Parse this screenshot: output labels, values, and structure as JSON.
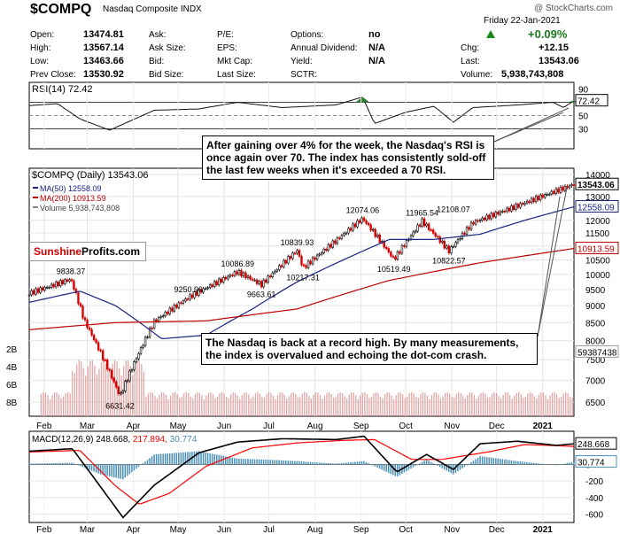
{
  "header": {
    "symbol": "$COMPQ",
    "name": "Nasdaq Composite INDX",
    "source": "@ StockCharts.com",
    "date": "Friday 22-Jan-2021",
    "change_pct": "+0.09%",
    "stats": [
      {
        "label": "Open:",
        "value": "13474.81"
      },
      {
        "label": "High:",
        "value": "13567.14"
      },
      {
        "label": "Low:",
        "value": "13463.66"
      },
      {
        "label": "Prev Close:",
        "value": "13530.92"
      }
    ],
    "col2": [
      "Ask:",
      "Ask Size:",
      "Bid:",
      "Bid Size:"
    ],
    "col3": [
      "P/E:",
      "EPS:",
      "Mkt Cap:",
      "Last Size:"
    ],
    "col4": [
      {
        "label": "Options:",
        "value": "no"
      },
      {
        "label": "Annual Dividend:",
        "value": "N/A"
      },
      {
        "label": "Yield:",
        "value": "N/A"
      },
      {
        "label": "SCTR:",
        "value": ""
      }
    ],
    "col5": [
      {
        "label": "Chg:",
        "value": "+12.15"
      },
      {
        "label": "Last:",
        "value": "13543.06"
      },
      {
        "label": "Volume:",
        "value": "5,938,743,808"
      }
    ]
  },
  "logo": {
    "part1": "Sunshine",
    "part2": "Profits.com"
  },
  "annotations": {
    "rsi_note": "After gaining over 4% for the week, the Nasdaq's RSI is once again over 70. The index has consistently sold-off the last few weeks when it's exceeded a 70 RSI.",
    "price_note": "The Nasdaq is back at a record high. By many measurements, the index is overvalued and echoing the dot-com crash."
  },
  "colors": {
    "ma50": "#1a237e",
    "ma200": "#c00000",
    "up": "#000000",
    "down": "#d40000",
    "volume": "#d98a8a",
    "histogram": "#4a90b8",
    "signal": "#ff0000",
    "rsi_fill": "#2e7d32"
  },
  "chart_data": [
    {
      "type": "line",
      "title": "RSI(14) 72.42",
      "x": [
        "2020-01-22",
        "2020-02-10",
        "2020-02-25",
        "2020-03-16",
        "2020-04-15",
        "2020-05-15",
        "2020-06-10",
        "2020-07-10",
        "2020-08-15",
        "2020-09-02",
        "2020-09-10",
        "2020-10-01",
        "2020-10-20",
        "2020-11-02",
        "2020-11-15",
        "2020-12-15",
        "2021-01-08",
        "2021-01-15",
        "2021-01-22"
      ],
      "values": [
        65,
        68,
        45,
        28,
        58,
        60,
        70,
        62,
        66,
        78,
        38,
        55,
        64,
        40,
        62,
        66,
        70,
        62,
        72.42
      ],
      "ylim": [
        0,
        100
      ],
      "reference_lines": [
        70,
        50,
        30
      ],
      "tick_labels": [
        "90",
        "70",
        "50",
        "30"
      ],
      "current_label": "72.42"
    },
    {
      "type": "line",
      "title": "$COMPQ (Daily) 13543.06",
      "legend": [
        "MA(50) 12558.09",
        "MA(200) 10913.59",
        "Volume 5,938,743,808"
      ],
      "scale": "log",
      "ylim": [
        6200,
        14300
      ],
      "y_ticks": [
        "14000",
        "13000",
        "12000",
        "11500",
        "11000",
        "10500",
        "10000",
        "9500",
        "9000",
        "8500",
        "8000",
        "7500",
        "7000",
        "6500"
      ],
      "series": [
        {
          "name": "$COMPQ",
          "x": [
            "2020-01-22",
            "2020-02-19",
            "2020-02-28",
            "2020-03-23",
            "2020-04-15",
            "2020-05-08",
            "2020-06-10",
            "2020-06-26",
            "2020-07-20",
            "2020-07-24",
            "2020-08-15",
            "2020-09-02",
            "2020-09-23",
            "2020-10-12",
            "2020-10-30",
            "2020-11-15",
            "2020-12-15",
            "2021-01-08",
            "2021-01-22"
          ],
          "values": [
            9380,
            9838.37,
            8560,
            6631.42,
            8530,
            9250.96,
            10086.89,
            9663.61,
            10839.93,
            10217.31,
            11200,
            12074.06,
            10519.49,
            11965.54,
            10822.57,
            11900,
            12600,
            13200,
            13543.06
          ]
        },
        {
          "name": "MA(50)",
          "x": [
            "2020-01-22",
            "2020-02-25",
            "2020-03-20",
            "2020-04-20",
            "2020-05-20",
            "2020-06-20",
            "2020-07-20",
            "2020-08-20",
            "2020-09-20",
            "2020-10-20",
            "2020-11-20",
            "2020-12-20",
            "2021-01-22"
          ],
          "values": [
            9100,
            9450,
            9000,
            8050,
            8150,
            8900,
            9750,
            10500,
            11250,
            11250,
            11450,
            12000,
            12558.09
          ]
        },
        {
          "name": "MA(200)",
          "x": [
            "2020-01-22",
            "2020-03-20",
            "2020-05-20",
            "2020-07-20",
            "2020-09-20",
            "2020-11-20",
            "2021-01-22"
          ],
          "values": [
            8300,
            8500,
            8550,
            8900,
            9800,
            10400,
            10913.59
          ]
        }
      ],
      "price_labels": [
        {
          "x": "2020-02-19",
          "value": "9838.37"
        },
        {
          "x": "2020-03-23",
          "value": "6631.42"
        },
        {
          "x": "2020-05-08",
          "value": "9250.96"
        },
        {
          "x": "2020-06-10",
          "value": "10086.89"
        },
        {
          "x": "2020-06-26",
          "value": "9663.61"
        },
        {
          "x": "2020-07-20",
          "value": "10839.93"
        },
        {
          "x": "2020-07-24",
          "value": "10217.31"
        },
        {
          "x": "2020-09-02",
          "value": "12074.06"
        },
        {
          "x": "2020-09-23",
          "value": "10519.49"
        },
        {
          "x": "2020-10-12",
          "value": "11965.54"
        },
        {
          "x": "2020-10-30",
          "value": "10822.57"
        },
        {
          "x": "2020-11-02",
          "value": "12108.07"
        }
      ],
      "last_labels": [
        "13543.06",
        "12558.09",
        "10913.59",
        "59387438"
      ],
      "volume_ticks": [
        "8B",
        "6B",
        "4B",
        "2B"
      ]
    },
    {
      "type": "line",
      "title": "MACD(12,26,9) 248.668, 217.894, 30.774",
      "legend": [
        "MACD(12,26,9) 248.668",
        "217.894",
        "30.774"
      ],
      "ylim": [
        -700,
        400
      ],
      "y_ticks": [
        "0",
        "-200",
        "-400",
        "-600"
      ],
      "series": [
        {
          "name": "MACD",
          "x": [
            "2020-01-22",
            "2020-02-20",
            "2020-03-05",
            "2020-03-25",
            "2020-04-15",
            "2020-05-15",
            "2020-06-10",
            "2020-07-10",
            "2020-08-15",
            "2020-09-03",
            "2020-09-25",
            "2020-10-15",
            "2020-11-02",
            "2020-11-20",
            "2020-12-15",
            "2021-01-10",
            "2021-01-22"
          ],
          "values": [
            160,
            190,
            -150,
            -640,
            -250,
            140,
            270,
            310,
            300,
            340,
            -90,
            120,
            -60,
            250,
            280,
            230,
            248.668
          ]
        },
        {
          "name": "Signal",
          "x": [
            "2020-01-22",
            "2020-02-25",
            "2020-03-20",
            "2020-04-05",
            "2020-04-25",
            "2020-05-20",
            "2020-06-20",
            "2020-07-20",
            "2020-08-20",
            "2020-09-10",
            "2020-10-05",
            "2020-10-25",
            "2020-11-25",
            "2020-12-20",
            "2021-01-22"
          ],
          "values": [
            150,
            170,
            -260,
            -480,
            -350,
            -20,
            200,
            260,
            290,
            300,
            60,
            60,
            150,
            240,
            217.894
          ]
        },
        {
          "name": "Histogram",
          "x": [
            "2020-01-22",
            "2020-02-20",
            "2020-03-10",
            "2020-03-25",
            "2020-04-15",
            "2020-05-15",
            "2020-06-10",
            "2020-07-10",
            "2020-08-15",
            "2020-09-03",
            "2020-09-25",
            "2020-10-15",
            "2020-11-02",
            "2020-11-20",
            "2020-12-15",
            "2021-01-10",
            "2021-01-22"
          ],
          "values": [
            10,
            20,
            -120,
            -180,
            120,
            160,
            70,
            50,
            10,
            40,
            -150,
            60,
            -120,
            100,
            40,
            -10,
            30.774
          ]
        }
      ],
      "last_labels": [
        "248.668",
        "30.774"
      ]
    }
  ],
  "x_axis": {
    "ticks": [
      {
        "date": "2020-02-01",
        "label": "Feb"
      },
      {
        "date": "2020-03-01",
        "label": "Mar"
      },
      {
        "date": "2020-04-01",
        "label": "Apr"
      },
      {
        "date": "2020-05-01",
        "label": "May"
      },
      {
        "date": "2020-06-01",
        "label": "Jun"
      },
      {
        "date": "2020-07-01",
        "label": "Jul"
      },
      {
        "date": "2020-08-01",
        "label": "Aug"
      },
      {
        "date": "2020-09-01",
        "label": "Sep"
      },
      {
        "date": "2020-10-01",
        "label": "Oct"
      },
      {
        "date": "2020-11-01",
        "label": "Nov"
      },
      {
        "date": "2020-12-01",
        "label": "Dec"
      },
      {
        "date": "2021-01-01",
        "label": "2021"
      }
    ]
  }
}
